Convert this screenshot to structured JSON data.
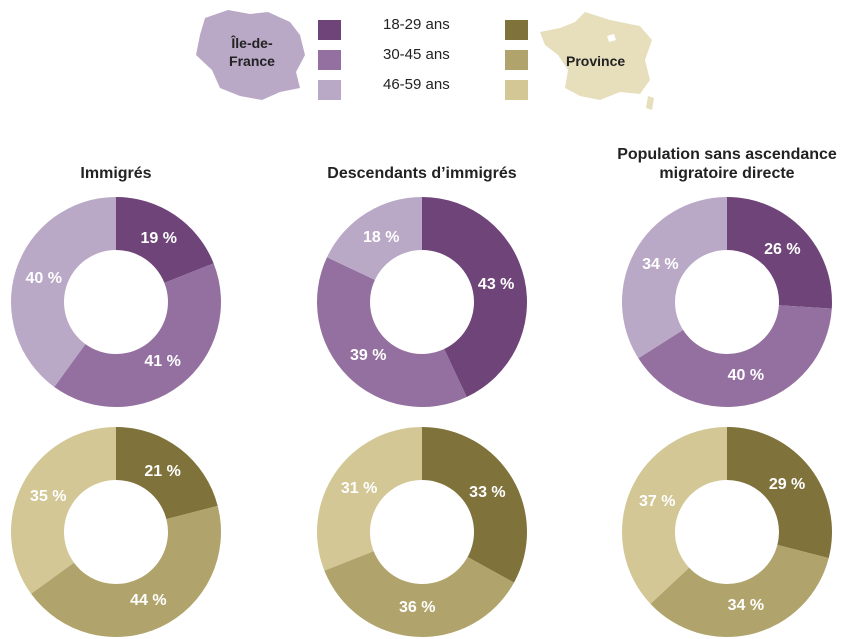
{
  "legend": {
    "categories": [
      "18-29 ans",
      "30-45 ans",
      "46-59 ans"
    ],
    "regions": [
      {
        "name": "Île-de-France",
        "colors": [
          "#6e4479",
          "#9470a0",
          "#b9a8c6"
        ]
      },
      {
        "name": "Province",
        "colors": [
          "#7f723a",
          "#b0a46c",
          "#d2c795"
        ]
      }
    ]
  },
  "chart_data": [
    {
      "type": "pie",
      "title": "Immigrés",
      "values": [
        19,
        41,
        40
      ],
      "value_labels": [
        "19 %",
        "41 %",
        "40 %"
      ],
      "colors": [
        "#6e4479",
        "#9470a0",
        "#b9a8c6"
      ]
    },
    {
      "type": "pie",
      "title": "Descendants d’immigrés",
      "values": [
        43,
        39,
        18
      ],
      "value_labels": [
        "43 %",
        "39 %",
        "18 %"
      ],
      "colors": [
        "#6e4479",
        "#9470a0",
        "#b9a8c6"
      ]
    },
    {
      "type": "pie",
      "title": "Population sans ascendance migratoire directe",
      "values": [
        26,
        40,
        34
      ],
      "value_labels": [
        "26 %",
        "40 %",
        "34 %"
      ],
      "colors": [
        "#6e4479",
        "#9470a0",
        "#b9a8c6"
      ]
    },
    {
      "type": "pie",
      "values": [
        21,
        44,
        35
      ],
      "value_labels": [
        "21 %",
        "44 %",
        "35 %"
      ],
      "colors": [
        "#7f723a",
        "#b0a46c",
        "#d2c795"
      ]
    },
    {
      "type": "pie",
      "values": [
        33,
        36,
        31
      ],
      "value_labels": [
        "33 %",
        "36 %",
        "31 %"
      ],
      "colors": [
        "#7f723a",
        "#b0a46c",
        "#d2c795"
      ]
    },
    {
      "type": "pie",
      "values": [
        29,
        34,
        37
      ],
      "value_labels": [
        "29 %",
        "34 %",
        "37 %"
      ],
      "colors": [
        "#7f723a",
        "#b0a46c",
        "#d2c795"
      ]
    }
  ]
}
